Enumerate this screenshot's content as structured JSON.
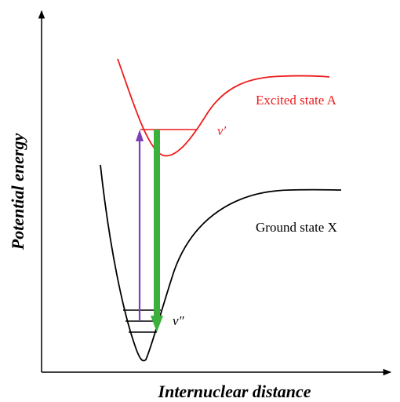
{
  "axes": {
    "x_label": "Internuclear distance",
    "y_label": "Potential energy"
  },
  "states": {
    "excited": {
      "label": "Excited state A",
      "level_label": "v′"
    },
    "ground": {
      "label": "Ground state X",
      "level_label": "v″"
    }
  },
  "colors": {
    "excited_curve": "#ee1c1c",
    "ground_curve": "#000000",
    "absorption_arrow": "#7b3fb8",
    "emission_arrow": "#3cb03c",
    "axis": "#000000"
  }
}
